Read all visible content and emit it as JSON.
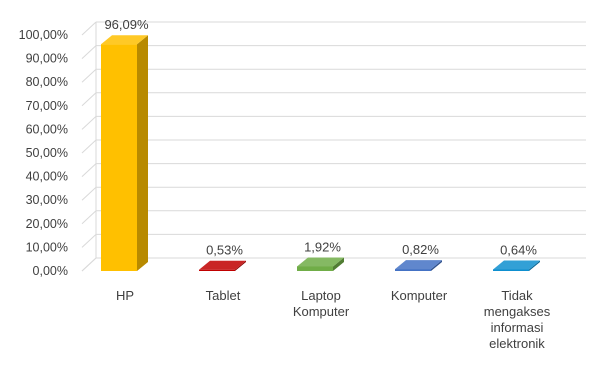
{
  "chart_data": {
    "type": "bar",
    "style": "3d-column",
    "categories": [
      "HP",
      "Tablet",
      "Laptop Komputer",
      "Komputer",
      "Tidak mengakses informasi elektronik"
    ],
    "category_lines": [
      [
        "HP"
      ],
      [
        "Tablet"
      ],
      [
        "Laptop",
        "Komputer"
      ],
      [
        "Komputer"
      ],
      [
        "Tidak",
        "mengakses",
        "informasi",
        "elektronik"
      ]
    ],
    "values": [
      96.09,
      0.53,
      1.92,
      0.82,
      0.64
    ],
    "data_labels": [
      "96,09%",
      "0,53%",
      "1,92%",
      "0,82%",
      "0,64%"
    ],
    "colors": [
      "#FFC000",
      "#C00000",
      "#70AD47",
      "#4472C4",
      "#0E8FCF"
    ],
    "ylim": [
      0,
      100
    ],
    "yticks": [
      0,
      10,
      20,
      30,
      40,
      50,
      60,
      70,
      80,
      90,
      100
    ],
    "ytick_labels": [
      "0,00%",
      "10,00%",
      "20,00%",
      "30,00%",
      "40,00%",
      "50,00%",
      "60,00%",
      "70,00%",
      "80,00%",
      "90,00%",
      "100,00%"
    ],
    "grid": true,
    "legend": "none",
    "title": "",
    "xlabel": "",
    "ylabel": ""
  }
}
